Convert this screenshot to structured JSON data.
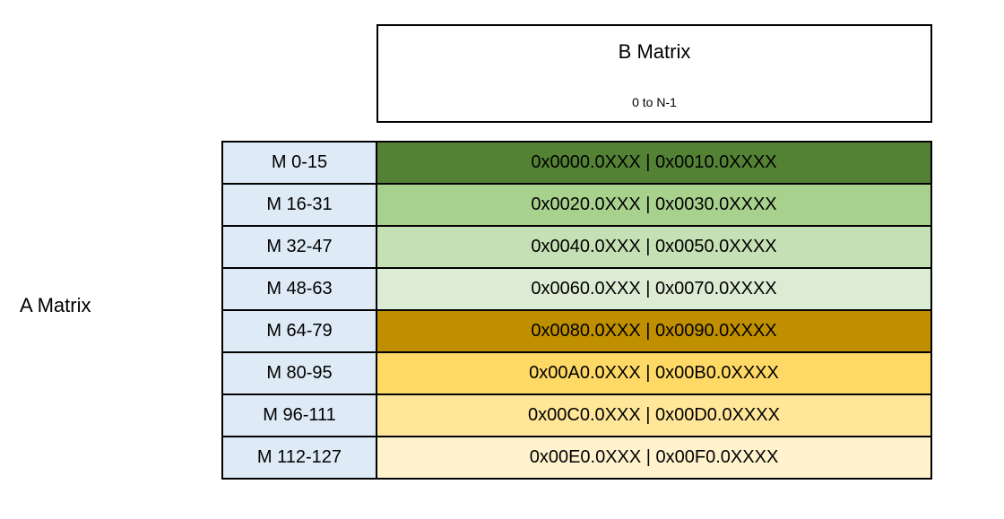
{
  "a_matrix": {
    "label": "A Matrix"
  },
  "b_matrix": {
    "title": "B Matrix",
    "subtitle": "0 to N-1"
  },
  "table": {
    "label_column_color": "#DEEBF7",
    "border_color": "#000000",
    "rows": [
      {
        "label": "M 0-15",
        "value": "0x0000.0XXX | 0x0010.0XXXX",
        "color": "#548235"
      },
      {
        "label": "M 16-31",
        "value": "0x0020.0XXX | 0x0030.0XXXX",
        "color": "#A9D18E"
      },
      {
        "label": "M 32-47",
        "value": "0x0040.0XXX | 0x0050.0XXXX",
        "color": "#C5E0B4"
      },
      {
        "label": "M 48-63",
        "value": "0x0060.0XXX | 0x0070.0XXXX",
        "color": "#DCEBD4"
      },
      {
        "label": "M 64-79",
        "value": "0x0080.0XXX | 0x0090.0XXXX",
        "color": "#BF8F00"
      },
      {
        "label": "M 80-95",
        "value": "0x00A0.0XXX | 0x00B0.0XXXX",
        "color": "#FFD966"
      },
      {
        "label": "M 96-111",
        "value": "0x00C0.0XXX | 0x00D0.0XXXX",
        "color": "#FFE699"
      },
      {
        "label": "M 112-127",
        "value": "0x00E0.0XXX | 0x00F0.0XXXX",
        "color": "#FFF2CC"
      }
    ]
  }
}
